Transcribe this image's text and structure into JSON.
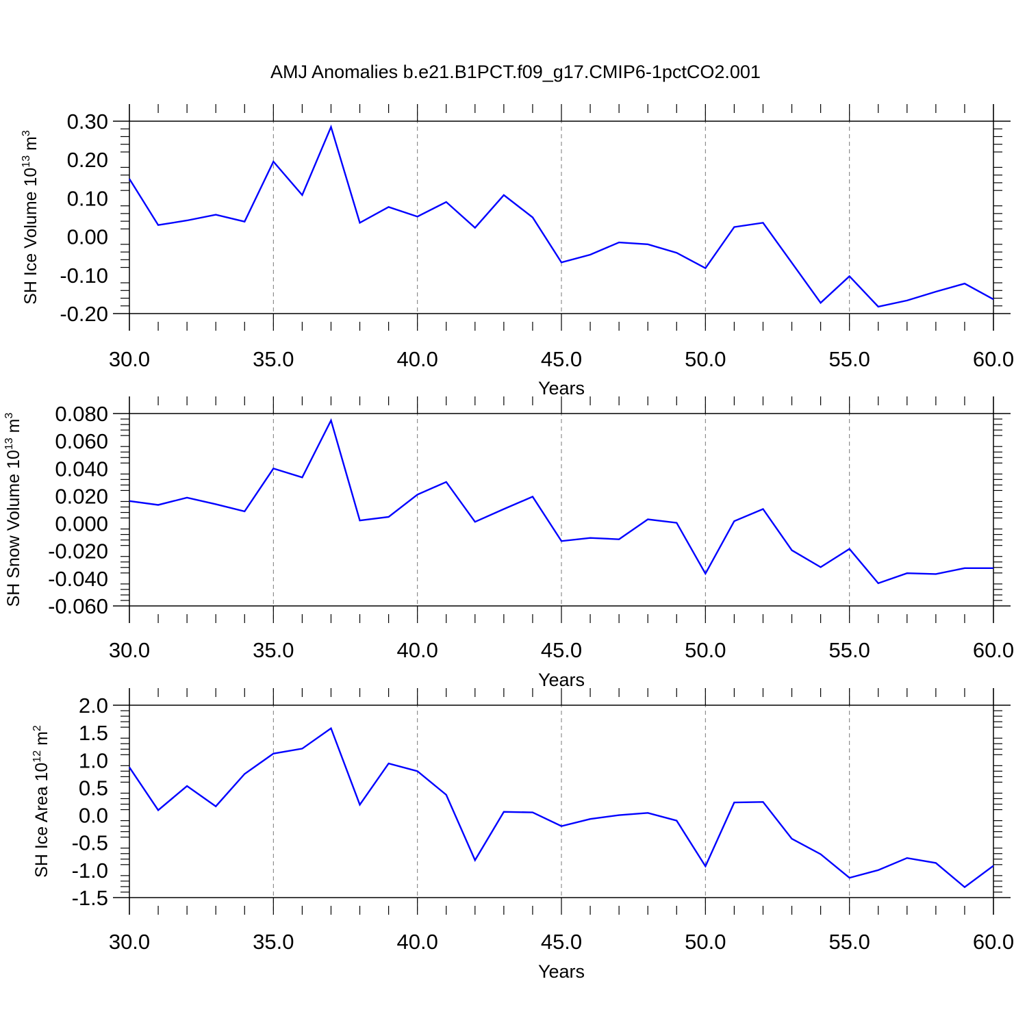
{
  "title": "AMJ Anomalies b.e21.B1PCT.f09_g17.CMIP6-1pctCO2.001",
  "colors": {
    "line": "#0000ff",
    "axes": "#000000",
    "grid": "#777777"
  },
  "chart_data": [
    {
      "type": "line",
      "ylabel": {
        "text": "SH Ice Volume 10",
        "sup1": "13",
        "text2": " m",
        "sup2": "3"
      },
      "xlabel": "Years",
      "xlim": [
        30,
        60
      ],
      "ylim": [
        -0.2,
        0.3
      ],
      "xticks": [
        "30.0",
        "35.0",
        "40.0",
        "45.0",
        "50.0",
        "55.0",
        "60.0"
      ],
      "yticks": [
        "0.30",
        "0.20",
        "0.10",
        "0.00",
        "-0.10",
        "-0.20"
      ],
      "ytick_values": [
        0.3,
        0.2,
        0.1,
        0.0,
        -0.1,
        -0.2
      ],
      "grid": "vertical dashed at major x ticks",
      "x": [
        30,
        31,
        32,
        33,
        34,
        35,
        36,
        37,
        38,
        39,
        40,
        41,
        42,
        43,
        44,
        45,
        46,
        47,
        48,
        49,
        50,
        51,
        52,
        53,
        54,
        55,
        56,
        57,
        58,
        59,
        60
      ],
      "series": [
        {
          "values": [
            0.15,
            0.03,
            0.042,
            0.057,
            0.039,
            0.195,
            0.108,
            0.285,
            0.036,
            0.077,
            0.052,
            0.09,
            0.023,
            0.108,
            0.05,
            -0.067,
            -0.047,
            -0.015,
            -0.02,
            -0.042,
            -0.082,
            0.025,
            0.036,
            -0.068,
            -0.172,
            -0.103,
            -0.182,
            -0.166,
            -0.143,
            -0.122,
            -0.163
          ]
        }
      ]
    },
    {
      "type": "line",
      "ylabel": {
        "text": "SH Snow Volume 10",
        "sup1": "13",
        "text2": " m",
        "sup2": "3"
      },
      "xlabel": "Years",
      "xlim": [
        30,
        60
      ],
      "ylim": [
        -0.06,
        0.08
      ],
      "xticks": [
        "30.0",
        "35.0",
        "40.0",
        "45.0",
        "50.0",
        "55.0",
        "60.0"
      ],
      "yticks": [
        "0.080",
        "0.060",
        "0.040",
        "0.020",
        "0.000",
        "-0.020",
        "-0.040",
        "-0.060"
      ],
      "ytick_values": [
        0.08,
        0.06,
        0.04,
        0.02,
        0.0,
        -0.02,
        -0.04,
        -0.06
      ],
      "grid": "vertical dashed at major x ticks",
      "x": [
        30,
        31,
        32,
        33,
        34,
        35,
        36,
        37,
        38,
        39,
        40,
        41,
        42,
        43,
        44,
        45,
        46,
        47,
        48,
        49,
        50,
        51,
        52,
        53,
        54,
        55,
        56,
        57,
        58,
        59,
        60
      ],
      "series": [
        {
          "values": [
            0.0163,
            0.0135,
            0.0188,
            0.014,
            0.0088,
            0.04,
            0.0335,
            0.075,
            0.0022,
            0.0048,
            0.021,
            0.0302,
            0.0012,
            0.0105,
            0.0195,
            -0.0128,
            -0.0105,
            -0.0115,
            0.003,
            0.0005,
            -0.0365,
            0.0017,
            0.0105,
            -0.0195,
            -0.0318,
            -0.0185,
            -0.0435,
            -0.0362,
            -0.0368,
            -0.0325,
            -0.0325
          ]
        }
      ]
    },
    {
      "type": "line",
      "ylabel": {
        "text": "SH Ice Area 10",
        "sup1": "12",
        "text2": " m",
        "sup2": "2"
      },
      "xlabel": "Years",
      "xlim": [
        30,
        60
      ],
      "ylim": [
        -1.5,
        2.0
      ],
      "xticks": [
        "30.0",
        "35.0",
        "40.0",
        "45.0",
        "50.0",
        "55.0",
        "60.0"
      ],
      "yticks": [
        "2.0",
        "1.5",
        "1.0",
        "0.5",
        "0.0",
        "-0.5",
        "-1.0",
        "-1.5"
      ],
      "ytick_values": [
        2.0,
        1.5,
        1.0,
        0.5,
        0.0,
        -0.5,
        -1.0,
        -1.5
      ],
      "grid": "vertical dashed at major x ticks",
      "x": [
        30,
        31,
        32,
        33,
        34,
        35,
        36,
        37,
        38,
        39,
        40,
        41,
        42,
        43,
        44,
        45,
        46,
        47,
        48,
        49,
        50,
        51,
        52,
        53,
        54,
        55,
        56,
        57,
        58,
        59,
        60
      ],
      "series": [
        {
          "values": [
            0.87,
            0.09,
            0.53,
            0.16,
            0.75,
            1.12,
            1.21,
            1.58,
            0.19,
            0.94,
            0.8,
            0.37,
            -0.82,
            0.06,
            0.05,
            -0.2,
            -0.07,
            0.0,
            0.04,
            -0.1,
            -0.93,
            0.23,
            0.24,
            -0.43,
            -0.71,
            -1.14,
            -1.0,
            -0.78,
            -0.87,
            -1.31,
            -0.92
          ]
        }
      ]
    }
  ]
}
